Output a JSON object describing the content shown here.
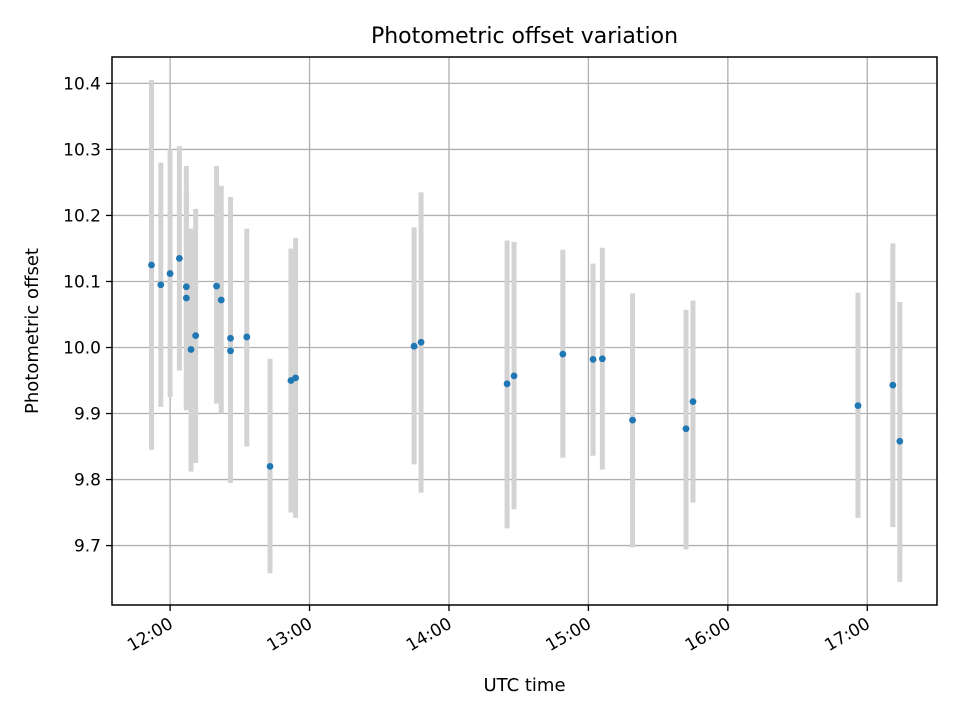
{
  "chart_data": {
    "type": "scatter",
    "title": "Photometric offset variation",
    "xlabel": "UTC time",
    "ylabel": "Photometric offset",
    "x_axis": {
      "kind": "time",
      "range": [
        "11:35",
        "17:30"
      ],
      "ticks": [
        "12:00",
        "13:00",
        "14:00",
        "15:00",
        "16:00",
        "17:00"
      ]
    },
    "y_axis": {
      "range": [
        9.61,
        10.44
      ],
      "ticks": [
        "9.7",
        "9.8",
        "9.9",
        "10.0",
        "10.1",
        "10.2",
        "10.3",
        "10.4"
      ]
    },
    "grid": true,
    "colors": {
      "points": "#1f77b4",
      "error_bars": "#d3d3d3",
      "grid": "#b0b0b0"
    },
    "points": [
      {
        "t": "11:52",
        "y": 10.125,
        "lo": 9.845,
        "hi": 10.405
      },
      {
        "t": "11:56",
        "y": 10.095,
        "lo": 9.91,
        "hi": 10.28
      },
      {
        "t": "12:00",
        "y": 10.112,
        "lo": 9.925,
        "hi": 10.3
      },
      {
        "t": "12:04",
        "y": 10.135,
        "lo": 9.965,
        "hi": 10.305
      },
      {
        "t": "12:07",
        "y": 10.092,
        "lo": 9.91,
        "hi": 10.275
      },
      {
        "t": "12:07",
        "y": 10.075,
        "lo": 9.905,
        "hi": 10.24
      },
      {
        "t": "12:09",
        "y": 9.997,
        "lo": 9.812,
        "hi": 10.18
      },
      {
        "t": "12:11",
        "y": 10.018,
        "lo": 9.825,
        "hi": 10.21
      },
      {
        "t": "12:20",
        "y": 10.093,
        "lo": 9.915,
        "hi": 10.275
      },
      {
        "t": "12:22",
        "y": 10.072,
        "lo": 9.9,
        "hi": 10.245
      },
      {
        "t": "12:26",
        "y": 10.014,
        "lo": 9.795,
        "hi": 10.228
      },
      {
        "t": "12:26",
        "y": 9.995,
        "lo": 9.795,
        "hi": 10.2
      },
      {
        "t": "12:33",
        "y": 10.016,
        "lo": 9.85,
        "hi": 10.18
      },
      {
        "t": "12:43",
        "y": 9.82,
        "lo": 9.658,
        "hi": 9.983
      },
      {
        "t": "12:52",
        "y": 9.95,
        "lo": 9.75,
        "hi": 10.15
      },
      {
        "t": "12:54",
        "y": 9.954,
        "lo": 9.742,
        "hi": 10.166
      },
      {
        "t": "13:45",
        "y": 10.002,
        "lo": 9.823,
        "hi": 10.182
      },
      {
        "t": "13:48",
        "y": 10.008,
        "lo": 9.78,
        "hi": 10.235
      },
      {
        "t": "14:25",
        "y": 9.945,
        "lo": 9.726,
        "hi": 10.162
      },
      {
        "t": "14:28",
        "y": 9.957,
        "lo": 9.755,
        "hi": 10.16
      },
      {
        "t": "14:49",
        "y": 9.99,
        "lo": 9.833,
        "hi": 10.148
      },
      {
        "t": "15:02",
        "y": 9.982,
        "lo": 9.836,
        "hi": 10.127
      },
      {
        "t": "15:06",
        "y": 9.983,
        "lo": 9.815,
        "hi": 10.151
      },
      {
        "t": "15:19",
        "y": 9.89,
        "lo": 9.697,
        "hi": 10.082
      },
      {
        "t": "15:42",
        "y": 9.877,
        "lo": 9.694,
        "hi": 10.057
      },
      {
        "t": "15:45",
        "y": 9.918,
        "lo": 9.765,
        "hi": 10.071
      },
      {
        "t": "16:56",
        "y": 9.912,
        "lo": 9.742,
        "hi": 10.083
      },
      {
        "t": "17:11",
        "y": 9.943,
        "lo": 9.728,
        "hi": 10.158
      },
      {
        "t": "17:14",
        "y": 9.858,
        "lo": 9.645,
        "hi": 10.069
      }
    ]
  }
}
